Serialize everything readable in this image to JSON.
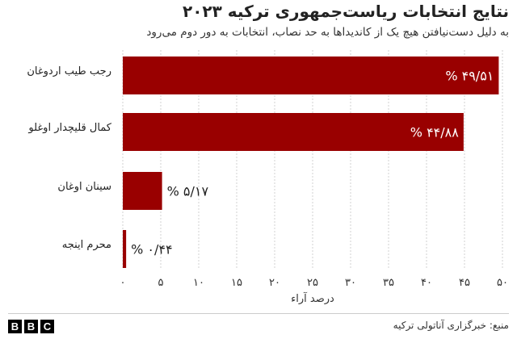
{
  "header": {
    "title": "نتایج انتخابات ریاست‌جمهوری ترکیه ۲۰۲۳",
    "subtitle": "به دلیل دست‌نیافتن هیچ یک از کاندیداها به حد نصاب، انتخابات به دور دوم می‌رود"
  },
  "footer": {
    "source": "منبع: خبرگزاری آناتولی ترکیه",
    "logo_letters": [
      "B",
      "B",
      "C"
    ]
  },
  "colors": {
    "bar": "#990000",
    "grid": "#d0d0d0",
    "text": "#222222"
  },
  "chart_data": {
    "type": "bar",
    "orientation": "horizontal",
    "categories": [
      "رجب طیب اردوغان",
      "کمال قلیچدار اوغلو",
      "سینان اوغان",
      "محرم اینجه"
    ],
    "values": [
      49.51,
      44.88,
      5.17,
      0.44
    ],
    "value_labels": [
      "% ۴۹/۵۱",
      "% ۴۴/۸۸",
      "% ۵/۱۷",
      "% ۰/۴۴"
    ],
    "xlabel": "درصد آراء",
    "xlim": [
      0,
      50
    ],
    "xticks": [
      0,
      5,
      10,
      15,
      20,
      25,
      30,
      35,
      40,
      45,
      50
    ],
    "xtick_labels": [
      "۰",
      "۵",
      "۱۰",
      "۱۵",
      "۲۰",
      "۲۵",
      "۳۰",
      "۳۵",
      "۴۰",
      "۴۵",
      "۵۰"
    ],
    "grid": true
  }
}
